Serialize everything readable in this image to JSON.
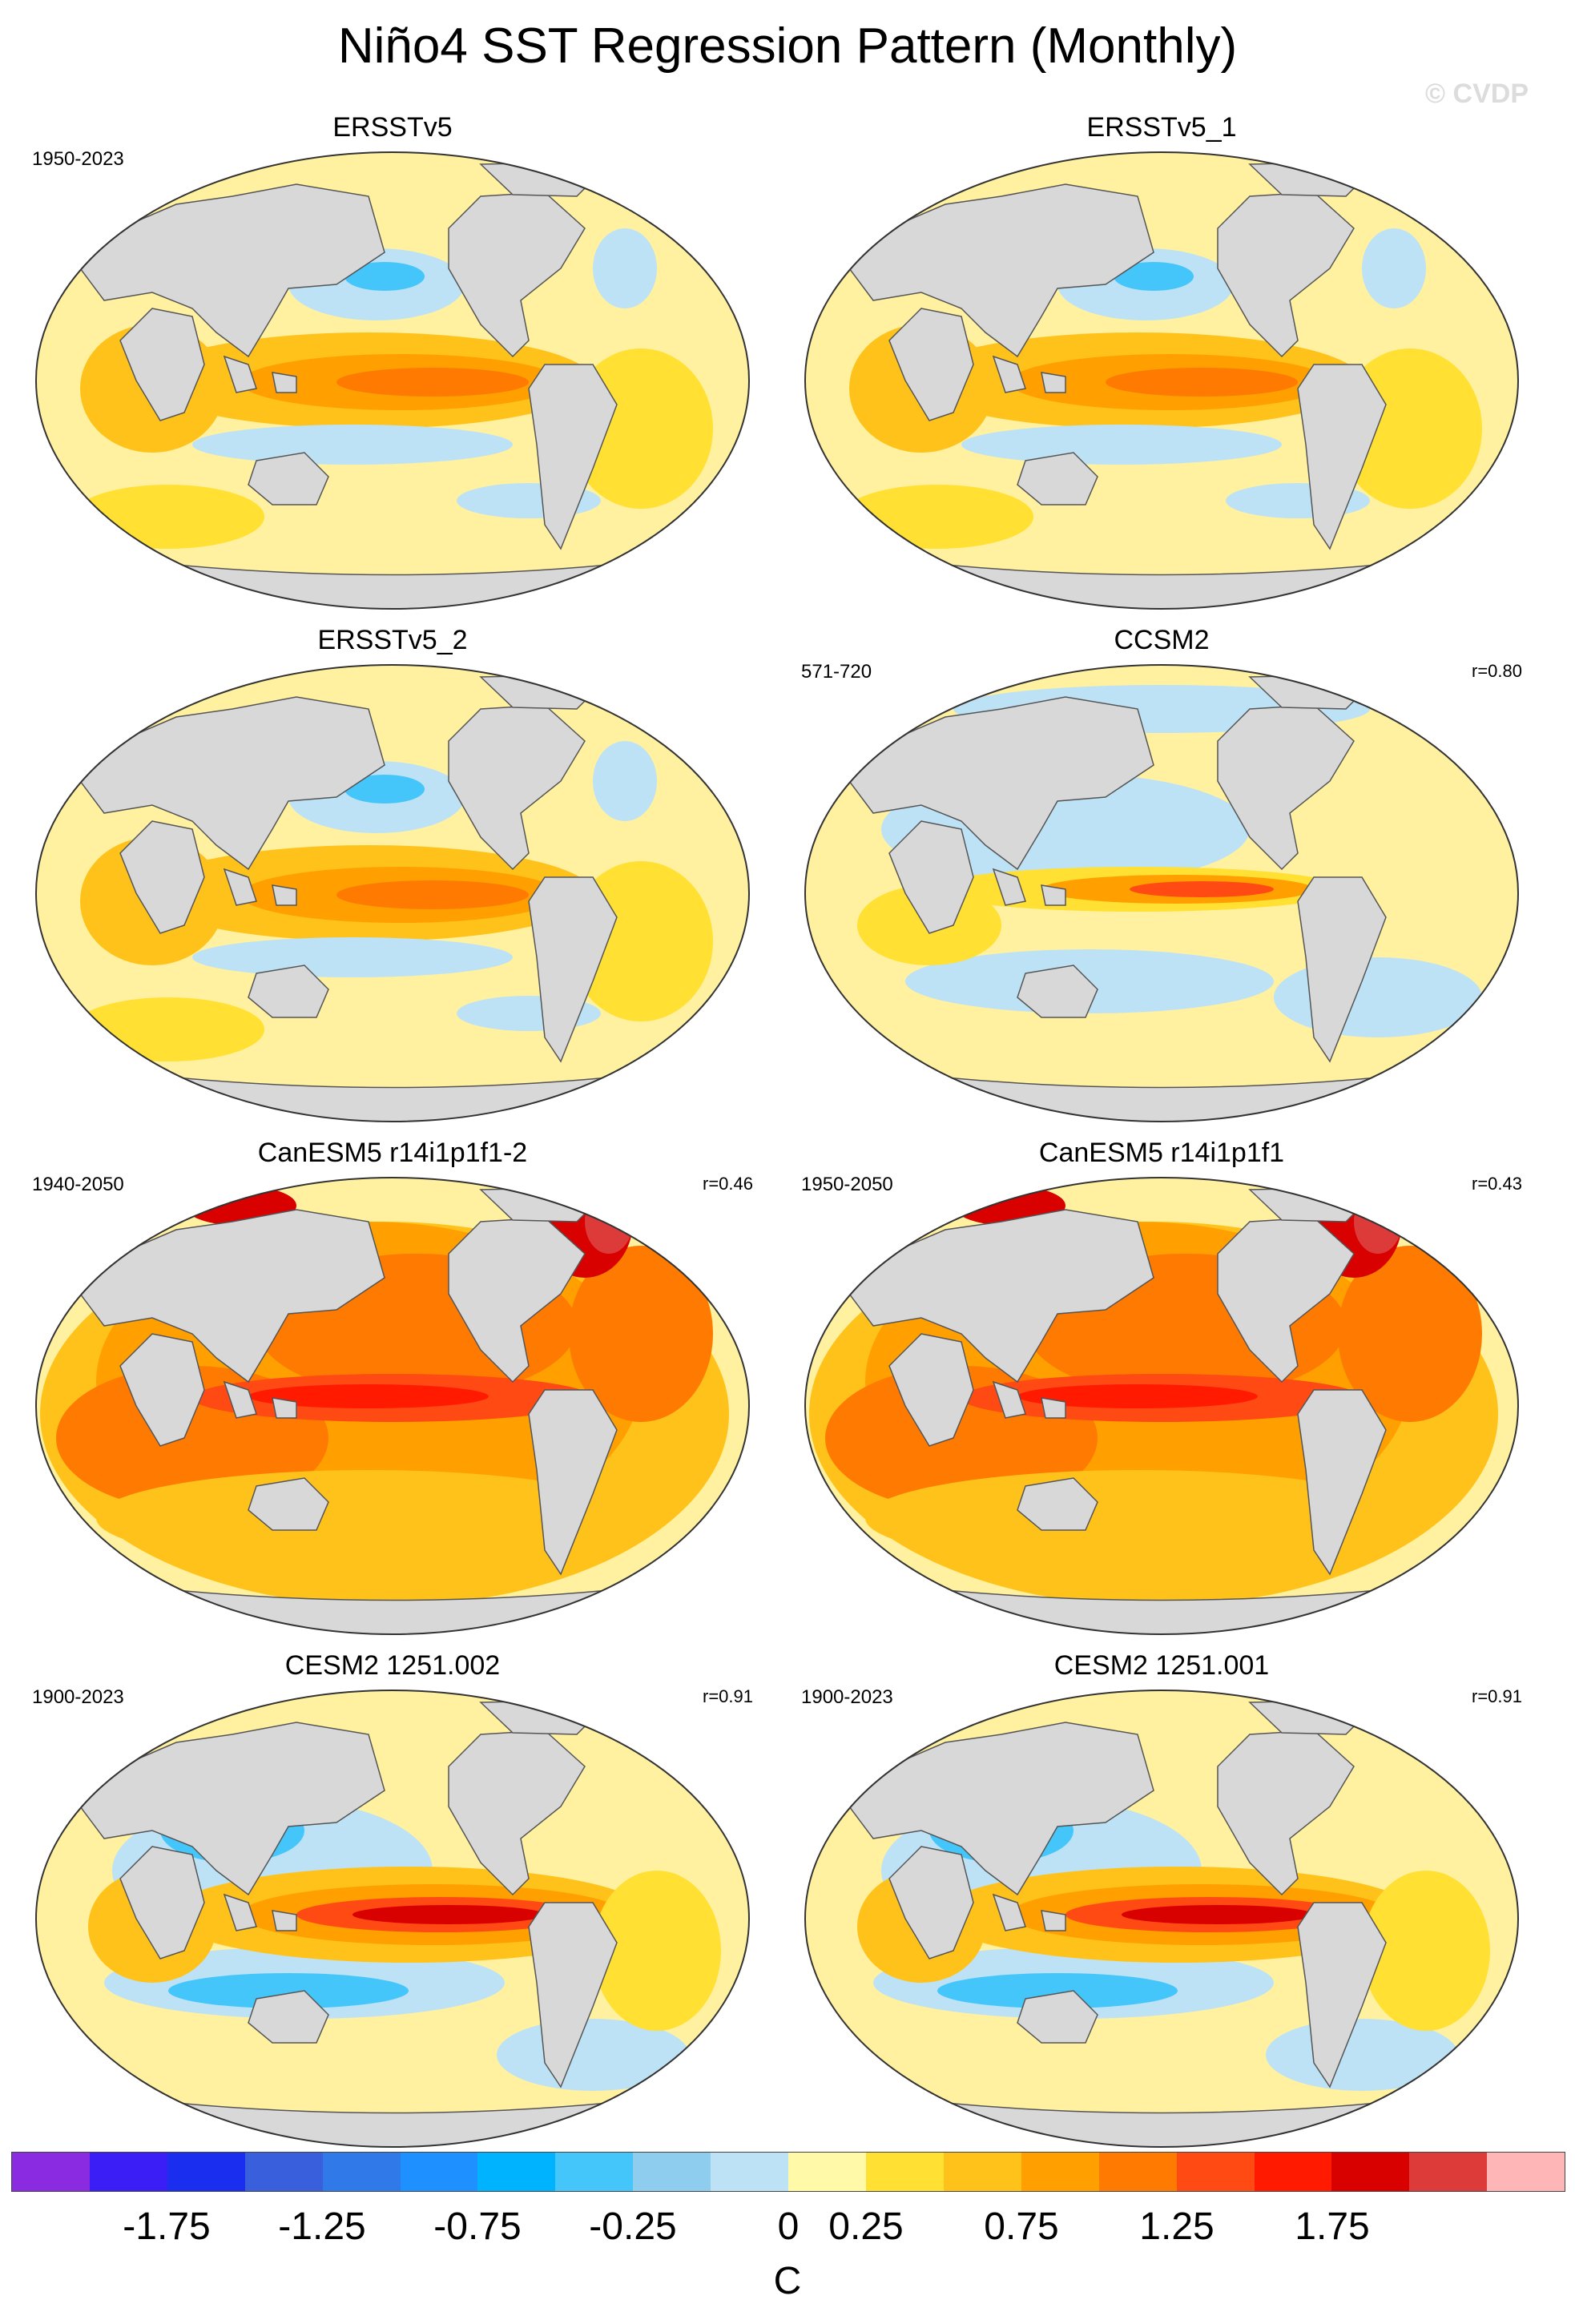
{
  "figure": {
    "title": "Niño4 SST Regression Pattern (Monthly)",
    "copyright": "© CVDP"
  },
  "panels": [
    {
      "title": "ERSSTv5",
      "period": "1950-2023",
      "corr": "",
      "pattern": "obs"
    },
    {
      "title": "ERSSTv5_1",
      "period": "",
      "corr": "",
      "pattern": "obs"
    },
    {
      "title": "ERSSTv5_2",
      "period": "",
      "corr": "",
      "pattern": "obs"
    },
    {
      "title": "CCSM2",
      "period": "571-720",
      "corr": "r=0.80",
      "pattern": "ccsm"
    },
    {
      "title": "CanESM5 r14i1p1f1-2",
      "period": "1940-2050",
      "corr": "r=0.46",
      "pattern": "canesm"
    },
    {
      "title": "CanESM5 r14i1p1f1",
      "period": "1950-2050",
      "corr": "r=0.43",
      "pattern": "canesm"
    },
    {
      "title": "CESM2 1251.002",
      "period": "1900-2023",
      "corr": "r=0.91",
      "pattern": "cesm"
    },
    {
      "title": "CESM2 1251.001",
      "period": "1900-2023",
      "corr": "r=0.91",
      "pattern": "cesm"
    }
  ],
  "colorbar": {
    "unit": "C",
    "colors": [
      "#8a2be2",
      "#3b1ef5",
      "#1a2ef0",
      "#3a5fdc",
      "#2f7ae8",
      "#1e90ff",
      "#00b3ff",
      "#45c6fa",
      "#8fcdef",
      "#bde2f5",
      "#fff9a8",
      "#ffe033",
      "#ffc21a",
      "#ffa000",
      "#ff7a00",
      "#ff4a14",
      "#ff1a00",
      "#d90000",
      "#dd3a3a",
      "#ffb6b6"
    ],
    "ticks": [
      "-1.75",
      "-1.25",
      "-0.75",
      "-0.25",
      "0",
      "0.25",
      "0.75",
      "1.25",
      "1.75"
    ],
    "tick_boundary_index": [
      2,
      4,
      6,
      8,
      10,
      11,
      13,
      15,
      17
    ]
  },
  "map_style": {
    "land": "#d8d8d8",
    "coast": "#555555",
    "ocean_base": "#fff1a0"
  }
}
